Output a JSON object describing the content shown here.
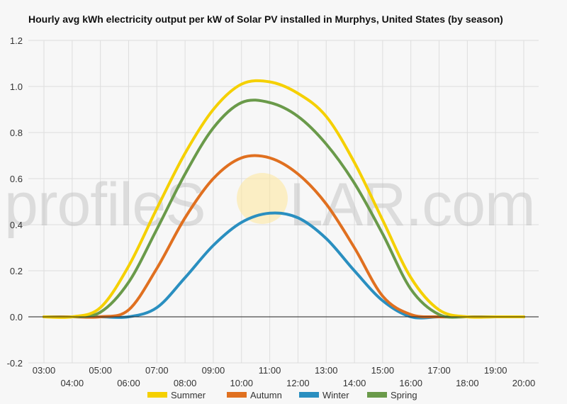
{
  "title": "Hourly avg kWh electricity output per kW of Solar PV installed in Murphys, United States (by season)",
  "watermark": {
    "left": "profileS",
    "right": "LAR.com"
  },
  "colors": {
    "Summer": "#f5d000",
    "Autumn": "#e07020",
    "Winter": "#2a8fc0",
    "Spring": "#6a9a4a",
    "grid": "#dddddd",
    "zero_line": "#222222"
  },
  "chart_data": {
    "type": "line",
    "title": "Hourly avg kWh electricity output per kW of Solar PV installed in Murphys, United States (by season)",
    "xlabel": "",
    "ylabel": "",
    "x": [
      "03:00",
      "04:00",
      "05:00",
      "06:00",
      "07:00",
      "08:00",
      "09:00",
      "10:00",
      "11:00",
      "12:00",
      "13:00",
      "14:00",
      "15:00",
      "16:00",
      "17:00",
      "18:00",
      "19:00",
      "20:00"
    ],
    "ylim": [
      -0.2,
      1.2
    ],
    "yticks": [
      -0.2,
      0.0,
      0.2,
      0.4,
      0.6,
      0.8,
      1.0,
      1.2
    ],
    "grid": true,
    "legend": "bottom",
    "series": [
      {
        "name": "Summer",
        "values": [
          0,
          0,
          0.04,
          0.22,
          0.47,
          0.71,
          0.9,
          1.01,
          1.02,
          0.97,
          0.87,
          0.67,
          0.42,
          0.17,
          0.03,
          0,
          0,
          0
        ]
      },
      {
        "name": "Autumn",
        "values": [
          0,
          0,
          0,
          0.03,
          0.21,
          0.43,
          0.6,
          0.69,
          0.69,
          0.62,
          0.49,
          0.3,
          0.09,
          0.01,
          0,
          0,
          0,
          0
        ]
      },
      {
        "name": "Winter",
        "values": [
          0,
          0,
          0,
          0,
          0.04,
          0.17,
          0.31,
          0.41,
          0.45,
          0.43,
          0.34,
          0.2,
          0.07,
          0,
          0,
          0,
          0,
          0
        ]
      },
      {
        "name": "Spring",
        "values": [
          0,
          0,
          0.02,
          0.15,
          0.38,
          0.62,
          0.82,
          0.93,
          0.93,
          0.87,
          0.75,
          0.58,
          0.36,
          0.12,
          0.01,
          0,
          0,
          0
        ]
      }
    ]
  }
}
